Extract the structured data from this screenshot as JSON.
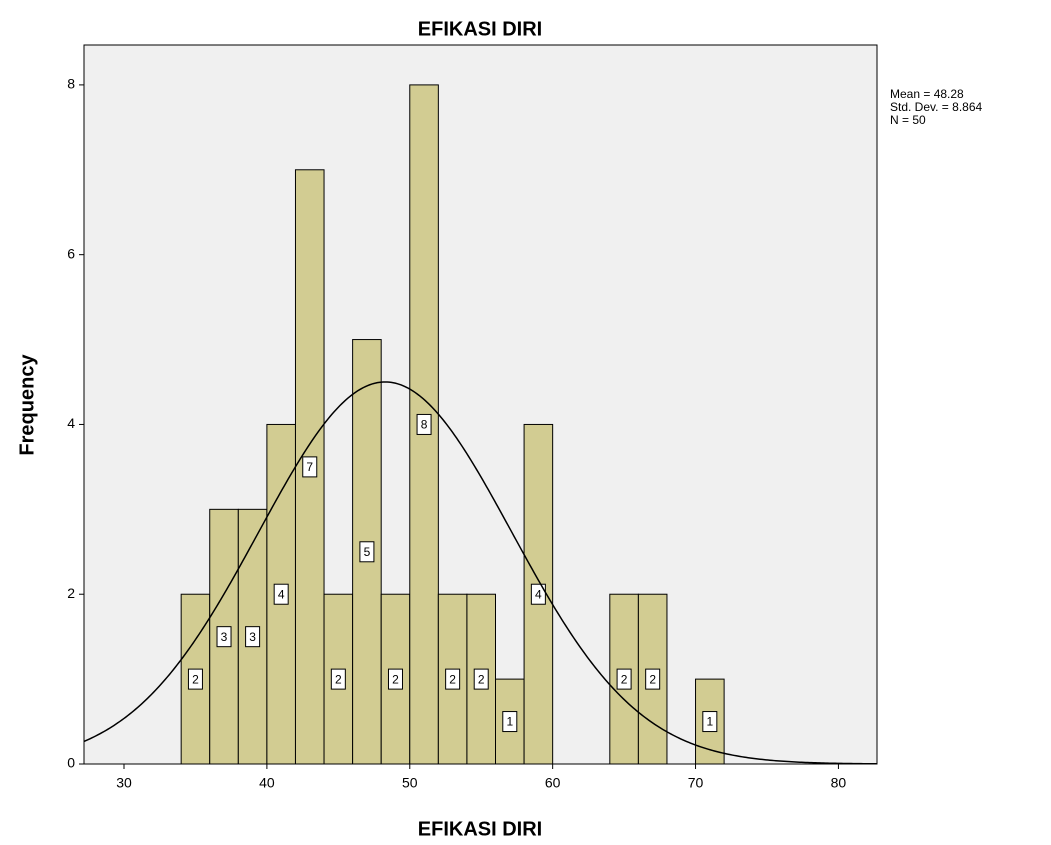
{
  "chart_data": {
    "type": "histogram",
    "title": "EFIKASI DIRI",
    "x_label": "EFIKASI DIRI",
    "y_label": "Frequency",
    "bins": [
      34,
      36,
      38,
      40,
      42,
      44,
      46,
      48,
      50,
      52,
      54,
      56,
      58,
      60,
      62,
      64,
      66,
      68,
      70,
      72
    ],
    "counts": [
      2,
      3,
      3,
      4,
      7,
      2,
      5,
      2,
      8,
      2,
      2,
      1,
      4,
      0,
      0,
      2,
      2,
      0,
      1
    ],
    "color": "#d2cc92",
    "xlim": [
      27.2,
      82.7
    ],
    "xticks": [
      30,
      40,
      50,
      60,
      70,
      80
    ],
    "ylim": [
      0,
      8.47
    ],
    "yticks": [
      0,
      2,
      4,
      6,
      8
    ],
    "stats": [
      "Mean = 48.28",
      "Std. Dev. = 8.864",
      "N = 50"
    ],
    "normal_curve": {
      "mean": 48.28,
      "sd": 8.864,
      "n": 50
    }
  }
}
